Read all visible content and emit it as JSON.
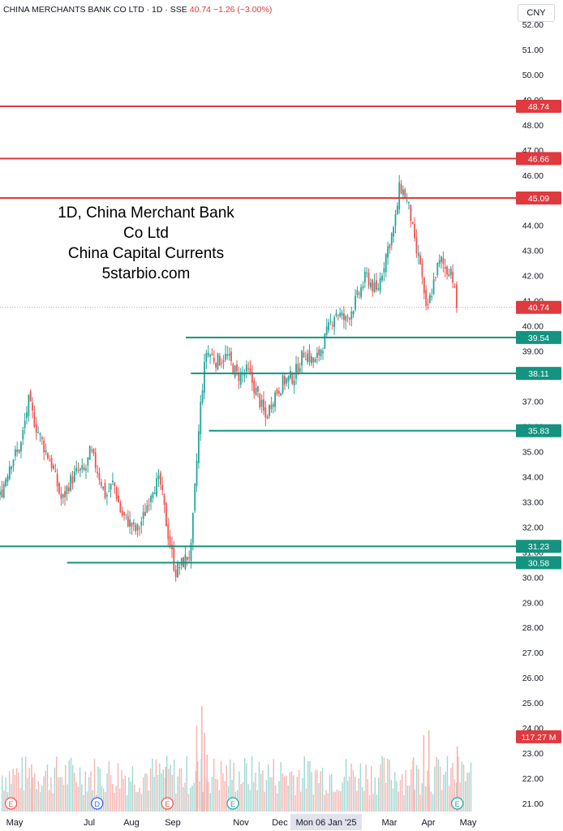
{
  "header": {
    "symbol": "CHINA MERCHANTS BANK CO LTD",
    "interval": "1D",
    "exchange": "SSE",
    "last": "40.74",
    "change": "−1.26 (−3.00%)",
    "currency_button": "CNY"
  },
  "overlay": {
    "line1": "1D, China Merchant Bank",
    "line2": "Co Ltd",
    "line3": "China Capital Currents",
    "line4": "5starbio.com"
  },
  "colors": {
    "up": "#26a69a",
    "down": "#ef5350",
    "resistance": "#e0393e",
    "support": "#149380",
    "axis_text": "#131722",
    "grid": "#f0f3fa",
    "vol_up": "#9fd9d2",
    "vol_down": "#f5b5b3"
  },
  "chart_data": {
    "type": "candlestick",
    "y_axis": {
      "ticks": [
        "21.00",
        "22.00",
        "23.00",
        "24.00",
        "25.00",
        "26.00",
        "27.00",
        "28.00",
        "29.00",
        "30.00",
        "31.00",
        "32.00",
        "33.00",
        "34.00",
        "35.00",
        "36.00",
        "37.00",
        "38.00",
        "39.00",
        "40.00",
        "41.00",
        "42.00",
        "43.00",
        "44.00",
        "45.00",
        "46.00",
        "47.00",
        "48.00",
        "49.00",
        "50.00",
        "51.00",
        "52.00"
      ],
      "range": [
        21,
        52
      ]
    },
    "x_axis": {
      "labels": [
        "May",
        "Jul",
        "Aug",
        "Sep",
        "Nov",
        "Dec",
        "Mon 06 Jan '25",
        "Mar",
        "Apr",
        "May"
      ],
      "highlighted": "Mon 06 Jan '25"
    },
    "price_tags": [
      {
        "label": "48.74",
        "value": 48.74,
        "kind": "resistance"
      },
      {
        "label": "46.66",
        "value": 46.66,
        "kind": "resistance"
      },
      {
        "label": "45.09",
        "value": 45.09,
        "kind": "resistance"
      },
      {
        "label": "40.74",
        "value": 40.74,
        "kind": "last"
      },
      {
        "label": "39.54",
        "value": 39.54,
        "kind": "support"
      },
      {
        "label": "38.11",
        "value": 38.11,
        "kind": "support"
      },
      {
        "label": "35.83",
        "value": 35.83,
        "kind": "support"
      },
      {
        "label": "31.23",
        "value": 31.23,
        "kind": "support"
      },
      {
        "label": "30.58",
        "value": 30.58,
        "kind": "support"
      },
      {
        "label": "117.27 M",
        "value": 23.65,
        "kind": "volume"
      }
    ],
    "horizontal_lines": [
      {
        "value": 48.74,
        "kind": "resistance",
        "x_start_frac": 0.0
      },
      {
        "value": 46.66,
        "kind": "resistance",
        "x_start_frac": 0.0
      },
      {
        "value": 45.09,
        "kind": "resistance",
        "x_start_frac": 0.0
      },
      {
        "value": 39.54,
        "kind": "support",
        "x_start_frac": 0.36
      },
      {
        "value": 38.11,
        "kind": "support",
        "x_start_frac": 0.37
      },
      {
        "value": 35.83,
        "kind": "support",
        "x_start_frac": 0.405
      },
      {
        "value": 31.23,
        "kind": "support",
        "x_start_frac": 0.0
      },
      {
        "value": 30.58,
        "kind": "support",
        "x_start_frac": 0.13
      }
    ],
    "price_path": [
      [
        0.0,
        33.2
      ],
      [
        0.02,
        34.6
      ],
      [
        0.04,
        35.2
      ],
      [
        0.055,
        37.0
      ],
      [
        0.07,
        36.0
      ],
      [
        0.085,
        35.2
      ],
      [
        0.1,
        34.5
      ],
      [
        0.12,
        33.0
      ],
      [
        0.135,
        33.8
      ],
      [
        0.15,
        34.2
      ],
      [
        0.165,
        34.2
      ],
      [
        0.175,
        35.0
      ],
      [
        0.19,
        34.2
      ],
      [
        0.205,
        33.2
      ],
      [
        0.22,
        33.8
      ],
      [
        0.235,
        32.5
      ],
      [
        0.25,
        32.2
      ],
      [
        0.265,
        31.8
      ],
      [
        0.28,
        32.5
      ],
      [
        0.295,
        33.6
      ],
      [
        0.31,
        33.8
      ],
      [
        0.325,
        31.8
      ],
      [
        0.34,
        30.2
      ],
      [
        0.355,
        30.6
      ],
      [
        0.37,
        31.0
      ],
      [
        0.38,
        34.2
      ],
      [
        0.39,
        37.2
      ],
      [
        0.4,
        39.0
      ],
      [
        0.42,
        38.6
      ],
      [
        0.44,
        38.8
      ],
      [
        0.46,
        38.0
      ],
      [
        0.48,
        38.2
      ],
      [
        0.5,
        37.2
      ],
      [
        0.515,
        36.3
      ],
      [
        0.53,
        37.2
      ],
      [
        0.55,
        37.8
      ],
      [
        0.57,
        38.0
      ],
      [
        0.59,
        39.0
      ],
      [
        0.61,
        38.5
      ],
      [
        0.63,
        39.5
      ],
      [
        0.65,
        40.6
      ],
      [
        0.67,
        40.2
      ],
      [
        0.69,
        41.0
      ],
      [
        0.71,
        42.0
      ],
      [
        0.73,
        41.3
      ],
      [
        0.75,
        43.0
      ],
      [
        0.765,
        44.0
      ],
      [
        0.775,
        45.6
      ],
      [
        0.785,
        45.2
      ],
      [
        0.795,
        44.5
      ],
      [
        0.805,
        43.0
      ],
      [
        0.815,
        42.5
      ],
      [
        0.825,
        40.5
      ],
      [
        0.835,
        41.2
      ],
      [
        0.845,
        42.2
      ],
      [
        0.855,
        42.6
      ],
      [
        0.865,
        42.2
      ],
      [
        0.875,
        42.3
      ],
      [
        0.885,
        40.74
      ]
    ],
    "volume_range_m": [
      0,
      250
    ],
    "volume_spikes": [
      {
        "x": 0.06,
        "m": 80
      },
      {
        "x": 0.32,
        "m": 75
      },
      {
        "x": 0.38,
        "m": 160
      },
      {
        "x": 0.39,
        "m": 200
      },
      {
        "x": 0.395,
        "m": 145
      },
      {
        "x": 0.4,
        "m": 100
      },
      {
        "x": 0.8,
        "m": 95
      },
      {
        "x": 0.82,
        "m": 140
      },
      {
        "x": 0.83,
        "m": 150
      },
      {
        "x": 0.885,
        "m": 117.27
      }
    ],
    "event_markers": [
      {
        "x_frac": 0.015,
        "label": "E",
        "color": "#ef5350"
      },
      {
        "x_frac": 0.182,
        "label": "D",
        "color": "#2962ff"
      },
      {
        "x_frac": 0.318,
        "label": "E",
        "color": "#ef5350"
      },
      {
        "x_frac": 0.445,
        "label": "E",
        "color": "#26a69a"
      },
      {
        "x_frac": 0.88,
        "label": "E",
        "color": "#26a69a"
      }
    ]
  }
}
